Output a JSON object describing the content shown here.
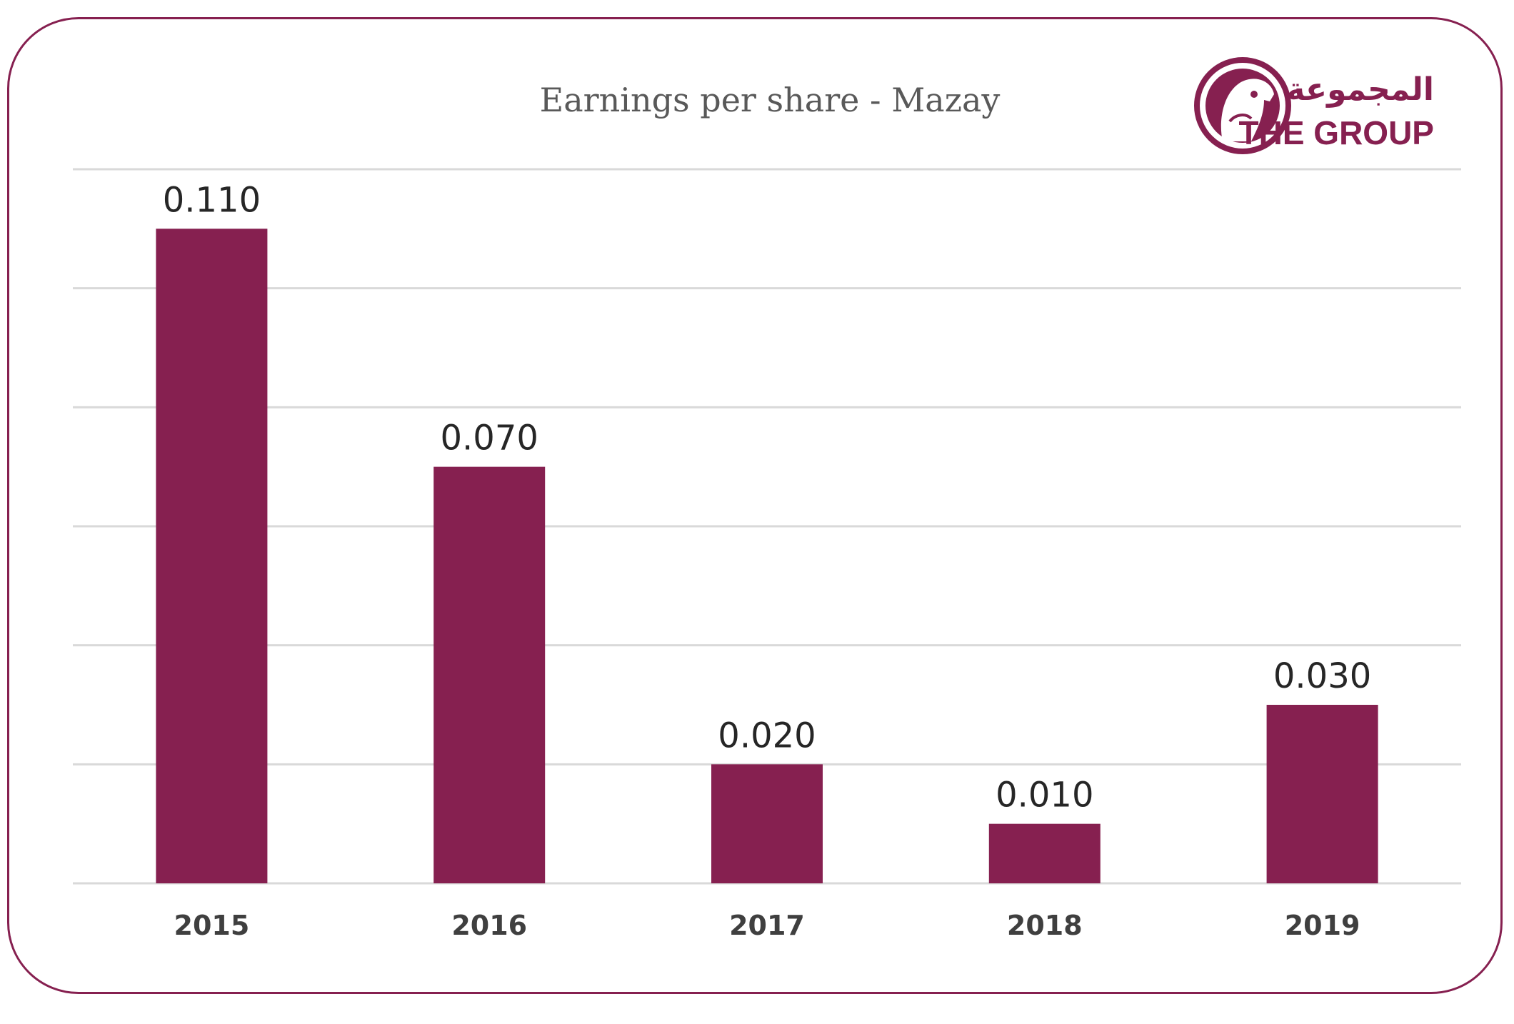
{
  "chart_data": {
    "type": "bar",
    "title": "Earnings per share - Mazay",
    "categories": [
      "2015",
      "2016",
      "2017",
      "2018",
      "2019"
    ],
    "values": [
      0.11,
      0.07,
      0.02,
      0.01,
      0.03
    ],
    "value_labels": [
      "0.110",
      "0.070",
      "0.020",
      "0.010",
      "0.030"
    ],
    "ylim": [
      0,
      0.12
    ],
    "grid": true,
    "bar_color": "#862050"
  },
  "logo": {
    "arabic": "المجموعة",
    "english": "THE GROUP",
    "color": "#862050"
  }
}
